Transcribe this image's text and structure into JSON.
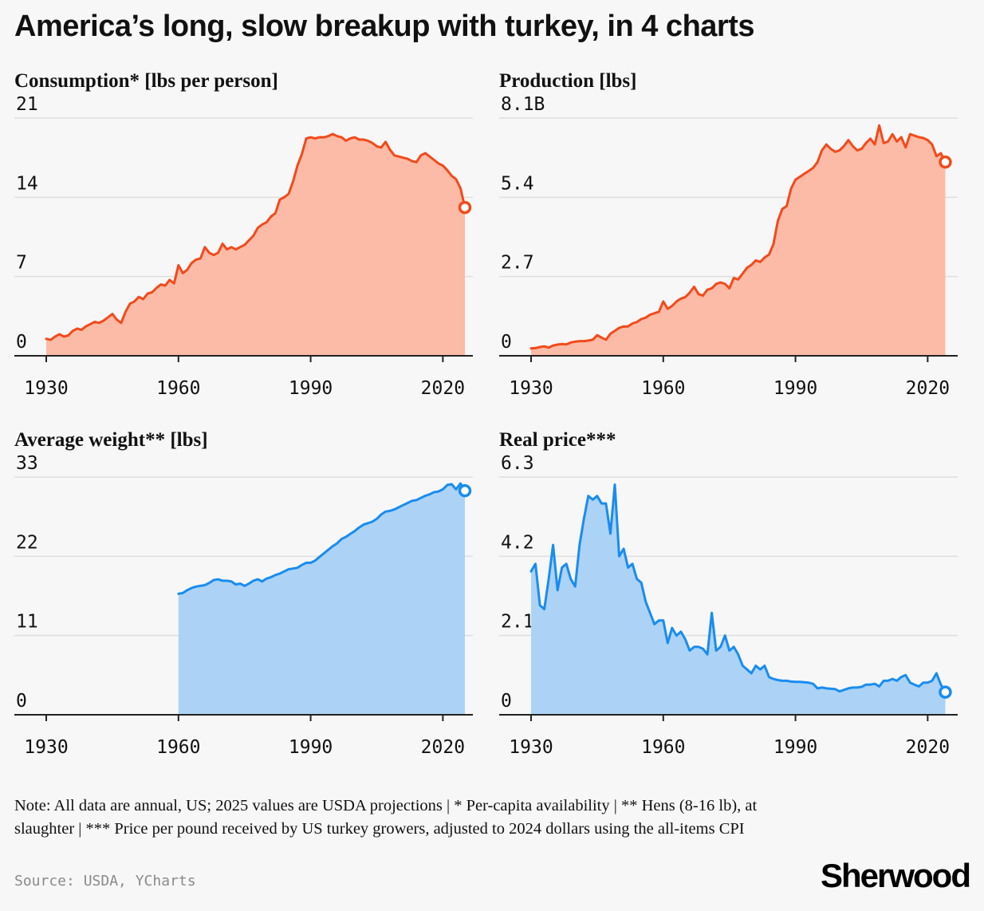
{
  "header": {
    "title": "America’s long, slow breakup with turkey, in 4 charts"
  },
  "chart_data": [
    {
      "id": "consumption",
      "type": "area",
      "title": "Consumption* [lbs per person]",
      "color": "#f24a1c",
      "fill": "#fcbba6",
      "ylim": [
        0,
        21
      ],
      "yticks": [
        "0",
        "7",
        "14",
        "21"
      ],
      "xlim": [
        1930,
        2025
      ],
      "xticks": [
        1930,
        1960,
        1990,
        2020
      ],
      "x": [
        1930,
        1931,
        1932,
        1933,
        1934,
        1935,
        1936,
        1937,
        1938,
        1939,
        1940,
        1941,
        1942,
        1943,
        1944,
        1945,
        1946,
        1947,
        1948,
        1949,
        1950,
        1951,
        1952,
        1953,
        1954,
        1955,
        1956,
        1957,
        1958,
        1959,
        1960,
        1961,
        1962,
        1963,
        1964,
        1965,
        1966,
        1967,
        1968,
        1969,
        1970,
        1971,
        1972,
        1973,
        1974,
        1975,
        1976,
        1977,
        1978,
        1979,
        1980,
        1981,
        1982,
        1983,
        1984,
        1985,
        1986,
        1987,
        1988,
        1989,
        1990,
        1991,
        1992,
        1993,
        1994,
        1995,
        1996,
        1997,
        1998,
        1999,
        2000,
        2001,
        2002,
        2003,
        2004,
        2005,
        2006,
        2007,
        2008,
        2009,
        2010,
        2011,
        2012,
        2013,
        2014,
        2015,
        2016,
        2017,
        2018,
        2019,
        2020,
        2021,
        2022,
        2023,
        2024,
        2025
      ],
      "y": [
        1.5,
        1.4,
        1.7,
        1.9,
        1.7,
        1.8,
        2.2,
        2.4,
        2.3,
        2.6,
        2.8,
        3.0,
        2.9,
        3.1,
        3.4,
        3.7,
        3.2,
        2.9,
        3.9,
        4.6,
        4.8,
        5.2,
        5.0,
        5.5,
        5.6,
        6.0,
        6.3,
        6.2,
        6.7,
        6.4,
        8.0,
        7.3,
        7.6,
        8.2,
        8.5,
        8.6,
        9.6,
        9.1,
        8.9,
        9.1,
        9.9,
        9.4,
        9.6,
        9.4,
        9.6,
        9.8,
        10.2,
        10.6,
        11.3,
        11.6,
        11.8,
        12.3,
        12.6,
        13.8,
        14.0,
        14.3,
        15.4,
        16.8,
        17.8,
        19.2,
        19.3,
        19.2,
        19.3,
        19.3,
        19.4,
        19.6,
        19.4,
        19.3,
        19.0,
        19.2,
        19.3,
        19.1,
        19.1,
        19.0,
        18.8,
        18.5,
        18.4,
        18.9,
        18.2,
        17.7,
        17.6,
        17.5,
        17.4,
        17.2,
        17.1,
        17.7,
        17.9,
        17.6,
        17.3,
        17.0,
        16.8,
        16.4,
        15.9,
        15.6,
        14.8,
        13.1
      ]
    },
    {
      "id": "production",
      "type": "area",
      "title": "Production [lbs]",
      "color": "#f24a1c",
      "fill": "#fcbba6",
      "ylim": [
        0,
        8.1
      ],
      "yticks": [
        "0",
        "2.7",
        "5.4",
        "8.1B"
      ],
      "xlim": [
        1930,
        2025
      ],
      "xticks": [
        1930,
        1960,
        1990,
        2020
      ],
      "x": [
        1930,
        1931,
        1932,
        1933,
        1934,
        1935,
        1936,
        1937,
        1938,
        1939,
        1940,
        1941,
        1942,
        1943,
        1944,
        1945,
        1946,
        1947,
        1948,
        1949,
        1950,
        1951,
        1952,
        1953,
        1954,
        1955,
        1956,
        1957,
        1958,
        1959,
        1960,
        1961,
        1962,
        1963,
        1964,
        1965,
        1966,
        1967,
        1968,
        1969,
        1970,
        1971,
        1972,
        1973,
        1974,
        1975,
        1976,
        1977,
        1978,
        1979,
        1980,
        1981,
        1982,
        1983,
        1984,
        1985,
        1986,
        1987,
        1988,
        1989,
        1990,
        1991,
        1992,
        1993,
        1994,
        1995,
        1996,
        1997,
        1998,
        1999,
        2000,
        2001,
        2002,
        2003,
        2004,
        2005,
        2006,
        2007,
        2008,
        2009,
        2010,
        2011,
        2012,
        2013,
        2014,
        2015,
        2016,
        2017,
        2018,
        2019,
        2020,
        2021,
        2022,
        2023,
        2024
      ],
      "y": [
        0.25,
        0.26,
        0.3,
        0.32,
        0.28,
        0.35,
        0.38,
        0.4,
        0.39,
        0.45,
        0.48,
        0.5,
        0.5,
        0.52,
        0.55,
        0.7,
        0.62,
        0.55,
        0.75,
        0.85,
        0.95,
        1.0,
        1.0,
        1.1,
        1.15,
        1.25,
        1.3,
        1.4,
        1.45,
        1.5,
        1.85,
        1.6,
        1.7,
        1.85,
        1.95,
        2.0,
        2.15,
        2.35,
        2.1,
        2.05,
        2.25,
        2.3,
        2.45,
        2.5,
        2.45,
        2.3,
        2.65,
        2.6,
        2.8,
        3.0,
        3.1,
        3.25,
        3.2,
        3.35,
        3.45,
        3.8,
        4.6,
        5.0,
        5.1,
        5.7,
        6.0,
        6.1,
        6.2,
        6.3,
        6.4,
        6.6,
        7.0,
        7.2,
        7.05,
        6.95,
        7.0,
        7.15,
        7.35,
        7.15,
        7.0,
        7.05,
        7.25,
        7.4,
        7.2,
        7.85,
        7.25,
        7.3,
        7.55,
        7.3,
        7.45,
        7.1,
        7.55,
        7.5,
        7.45,
        7.42,
        7.35,
        7.2,
        6.8,
        6.9,
        6.6
      ]
    },
    {
      "id": "weight",
      "type": "area",
      "title": "Average weight** [lbs]",
      "color": "#1a8cf0",
      "fill": "#acd3f5",
      "ylim": [
        0,
        33
      ],
      "yticks": [
        "0",
        "11",
        "22",
        "33"
      ],
      "xlim": [
        1930,
        2025
      ],
      "xticks": [
        1930,
        1960,
        1990,
        2020
      ],
      "x": [
        1960,
        1961,
        1962,
        1963,
        1964,
        1965,
        1966,
        1967,
        1968,
        1969,
        1970,
        1971,
        1972,
        1973,
        1974,
        1975,
        1976,
        1977,
        1978,
        1979,
        1980,
        1981,
        1982,
        1983,
        1984,
        1985,
        1986,
        1987,
        1988,
        1989,
        1990,
        1991,
        1992,
        1993,
        1994,
        1995,
        1996,
        1997,
        1998,
        1999,
        2000,
        2001,
        2002,
        2003,
        2004,
        2005,
        2006,
        2007,
        2008,
        2009,
        2010,
        2011,
        2012,
        2013,
        2014,
        2015,
        2016,
        2017,
        2018,
        2019,
        2020,
        2021,
        2022,
        2023,
        2024,
        2025
      ],
      "y": [
        16.8,
        16.9,
        17.3,
        17.6,
        17.8,
        17.9,
        18.0,
        18.3,
        18.7,
        18.8,
        18.6,
        18.6,
        18.5,
        18.1,
        18.2,
        17.9,
        18.2,
        18.6,
        18.8,
        18.5,
        18.9,
        19.1,
        19.4,
        19.6,
        19.9,
        20.2,
        20.3,
        20.4,
        20.8,
        21.1,
        21.1,
        21.4,
        21.9,
        22.4,
        22.9,
        23.4,
        23.8,
        24.4,
        24.7,
        25.1,
        25.5,
        26.0,
        26.4,
        26.6,
        26.8,
        27.2,
        27.8,
        28.2,
        28.3,
        28.5,
        28.8,
        29.1,
        29.4,
        29.7,
        29.8,
        30.1,
        30.4,
        30.6,
        30.9,
        31.0,
        31.3,
        31.9,
        32.0,
        31.3,
        32.1,
        31.1
      ]
    },
    {
      "id": "price",
      "type": "area",
      "title": "Real price***",
      "color": "#1a8cf0",
      "fill": "#acd3f5",
      "ylim": [
        0,
        6.3
      ],
      "yticks": [
        "0",
        "2.1",
        "4.2",
        "6.3"
      ],
      "xlim": [
        1930,
        2025
      ],
      "xticks": [
        1930,
        1960,
        1990,
        2020
      ],
      "x": [
        1930,
        1931,
        1932,
        1933,
        1934,
        1935,
        1936,
        1937,
        1938,
        1939,
        1940,
        1941,
        1942,
        1943,
        1944,
        1945,
        1946,
        1947,
        1948,
        1949,
        1950,
        1951,
        1952,
        1953,
        1954,
        1955,
        1956,
        1957,
        1958,
        1959,
        1960,
        1961,
        1962,
        1963,
        1964,
        1965,
        1966,
        1967,
        1968,
        1969,
        1970,
        1971,
        1972,
        1973,
        1974,
        1975,
        1976,
        1977,
        1978,
        1979,
        1980,
        1981,
        1982,
        1983,
        1984,
        1985,
        1986,
        1987,
        1988,
        1989,
        1990,
        1991,
        1992,
        1993,
        1994,
        1995,
        1996,
        1997,
        1998,
        1999,
        2000,
        2001,
        2002,
        2003,
        2004,
        2005,
        2006,
        2007,
        2008,
        2009,
        2010,
        2011,
        2012,
        2013,
        2014,
        2015,
        2016,
        2017,
        2018,
        2019,
        2020,
        2021,
        2022,
        2023,
        2024
      ],
      "y": [
        3.8,
        4.0,
        2.9,
        2.8,
        3.6,
        4.5,
        3.3,
        3.9,
        4.0,
        3.6,
        3.4,
        4.5,
        5.2,
        5.8,
        5.7,
        5.8,
        5.6,
        5.6,
        4.8,
        6.1,
        4.2,
        4.4,
        3.9,
        4.0,
        3.6,
        3.5,
        3.0,
        2.7,
        2.4,
        2.5,
        2.5,
        1.9,
        2.3,
        2.1,
        2.2,
        2.0,
        1.7,
        1.8,
        1.8,
        1.75,
        1.6,
        2.7,
        1.7,
        1.8,
        2.1,
        1.7,
        1.8,
        1.6,
        1.3,
        1.2,
        1.1,
        1.3,
        1.2,
        1.3,
        1.0,
        0.95,
        0.92,
        0.9,
        0.9,
        0.88,
        0.87,
        0.87,
        0.86,
        0.85,
        0.82,
        0.7,
        0.72,
        0.7,
        0.69,
        0.68,
        0.62,
        0.66,
        0.7,
        0.72,
        0.72,
        0.74,
        0.8,
        0.8,
        0.82,
        0.75,
        0.9,
        0.9,
        0.95,
        0.9,
        1.0,
        1.05,
        0.85,
        0.8,
        0.75,
        0.85,
        0.85,
        0.9,
        1.1,
        0.8,
        0.6
      ]
    }
  ],
  "footer": {
    "note": "Note: All data are annual, US; 2025 values are USDA projections | * Per-capita availability | ** Hens (8-16 lb), at slaughter | *** Price per pound received by US turkey growers, adjusted to 2024 dollars using the all-items CPI",
    "source": "Source: USDA, YCharts",
    "brand": "Sherwood"
  }
}
